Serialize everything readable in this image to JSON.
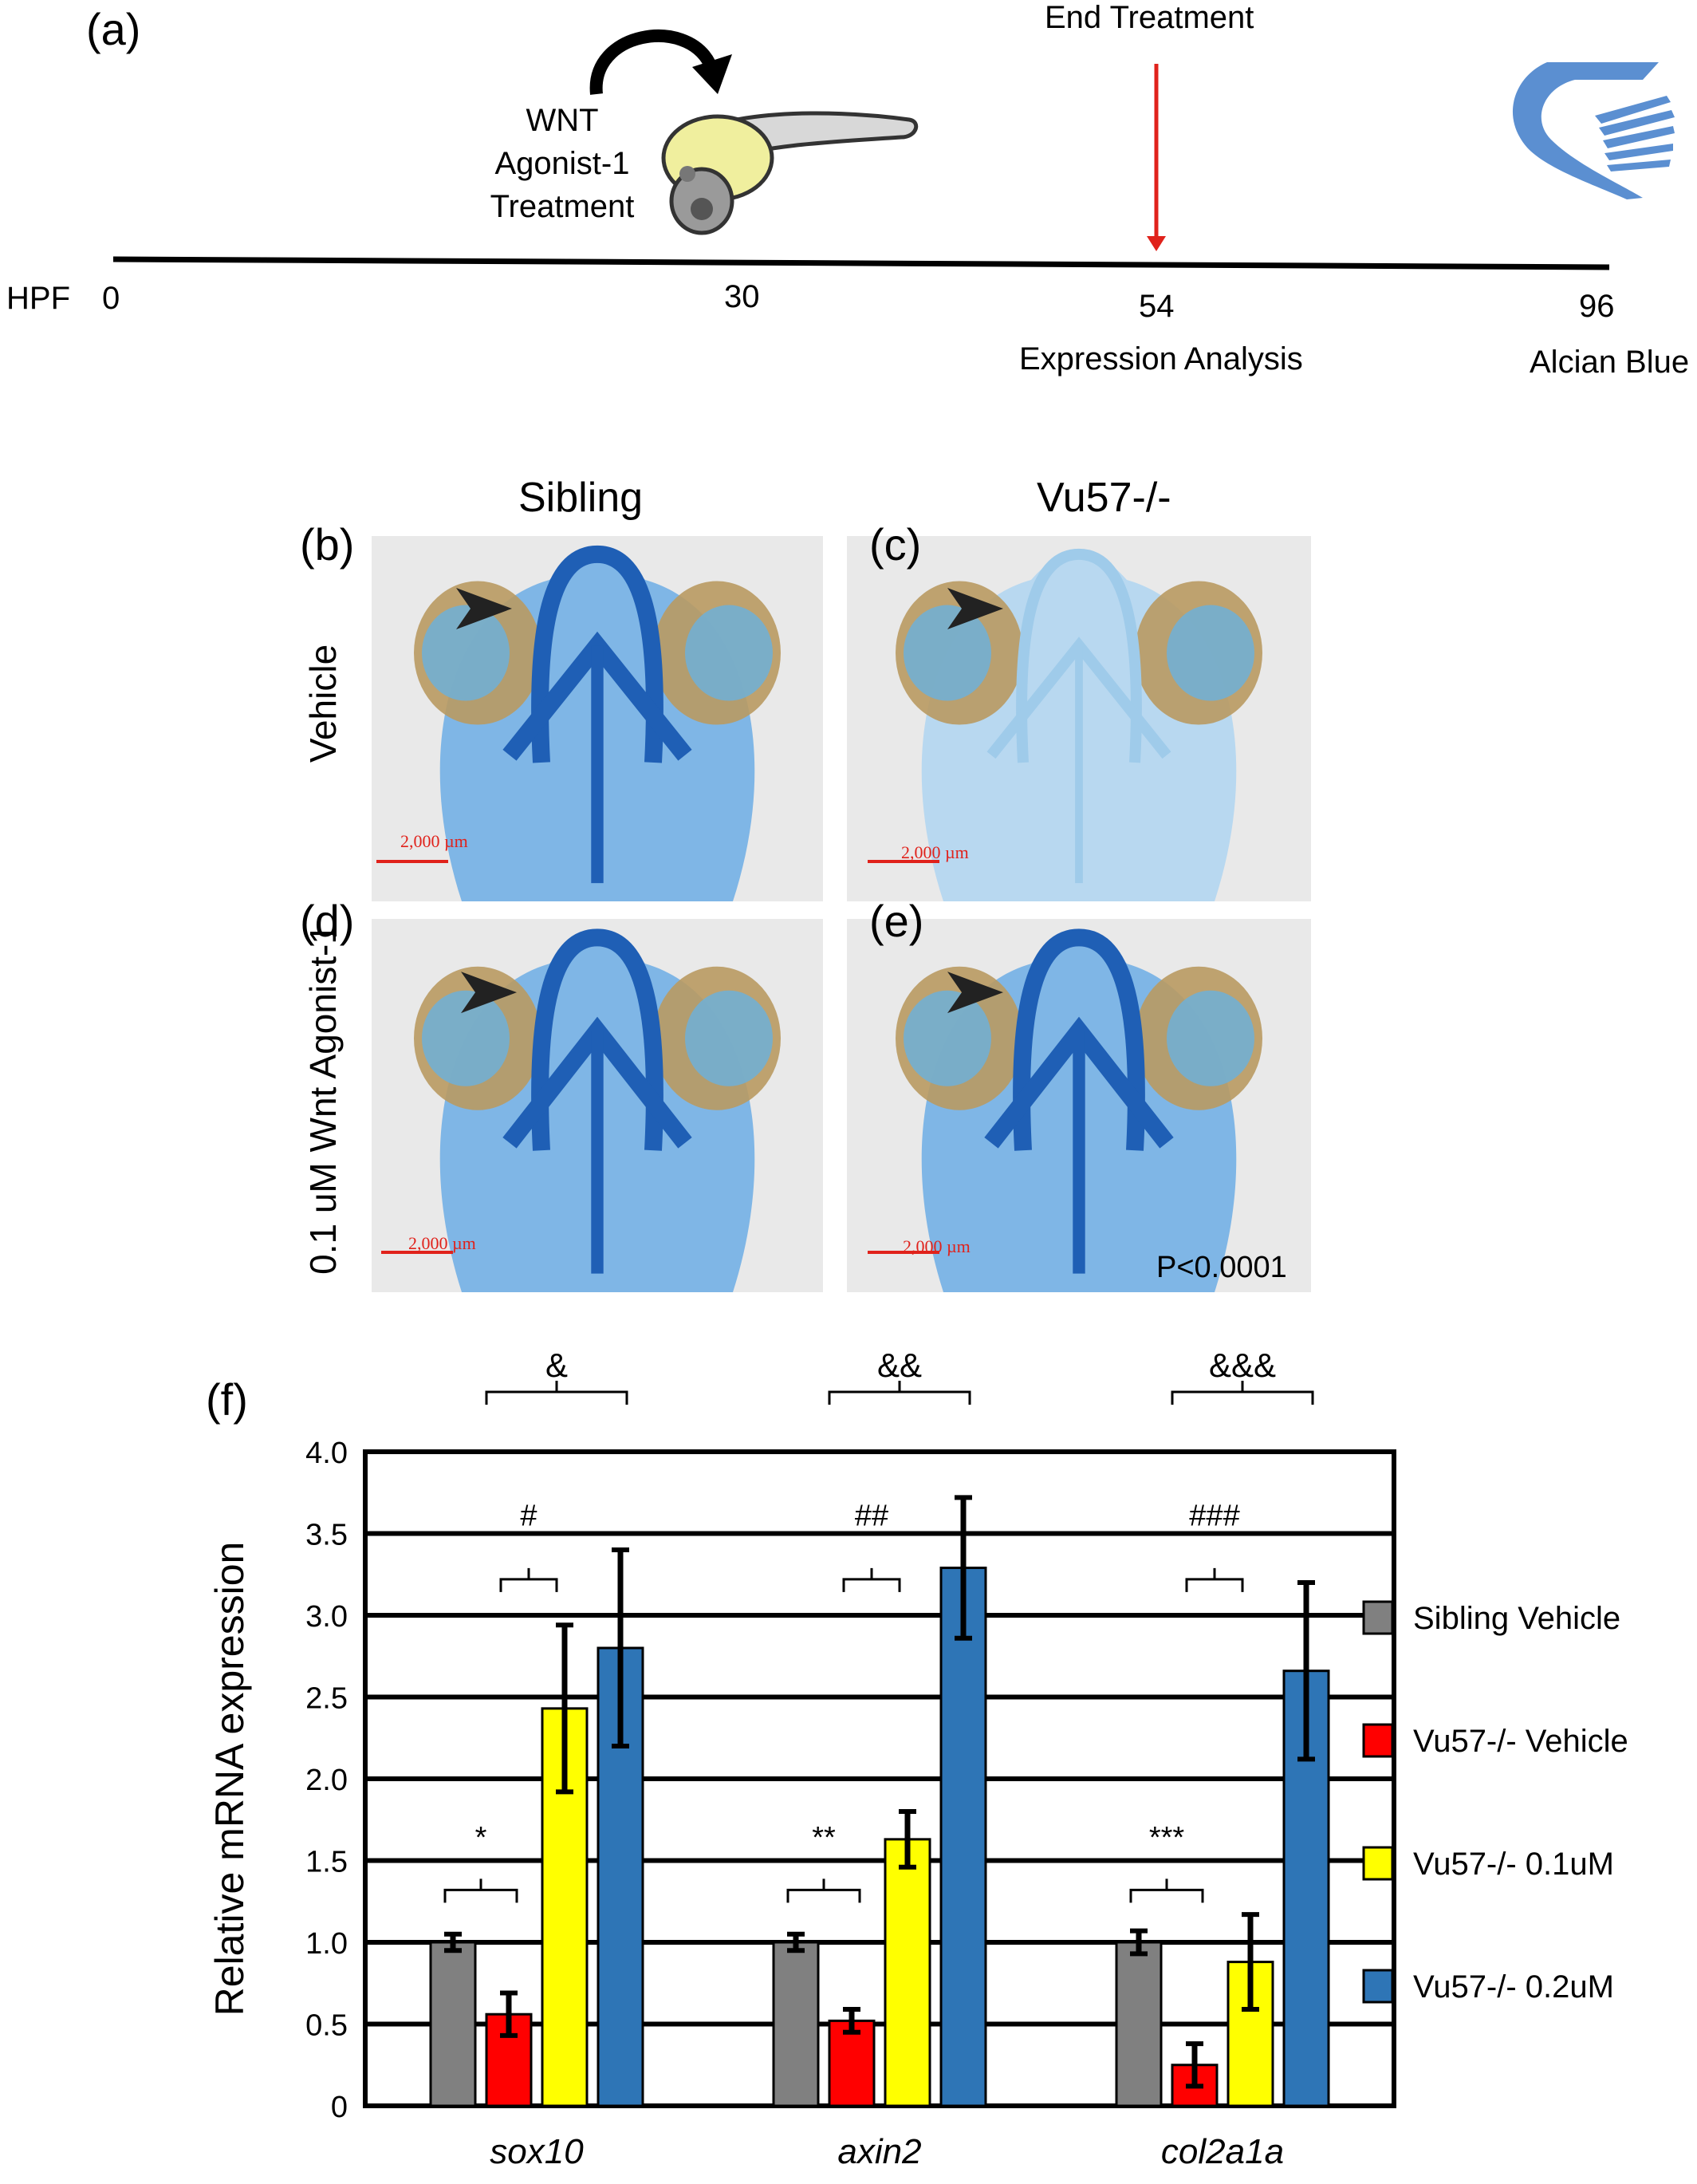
{
  "panel_a": {
    "letter": "(a)",
    "hpf_label": "HPF",
    "ticks": [
      {
        "value": "0",
        "note": ""
      },
      {
        "value": "30",
        "note": ""
      },
      {
        "value": "54",
        "note": "Expression Analysis"
      },
      {
        "value": "96",
        "note": "Alcian Blue"
      }
    ],
    "treatment_lines": [
      "WNT",
      "Agonist-1",
      "Treatment"
    ],
    "end_treatment": "End Treatment",
    "colors": {
      "arrow_red": "#e0221b",
      "cartilage_blue": "#5b8fd1",
      "yolk": "#f0ef9e"
    }
  },
  "panels_bcde": {
    "col_headers": [
      "Sibling",
      "Vu57-/-"
    ],
    "row_headers": [
      "Vehicle",
      "0.1 uM Wnt Agonist-1"
    ],
    "letters": [
      "(b)",
      "(c)",
      "(d)",
      "(e)"
    ],
    "scale_bar": "2,000 µm",
    "pvalue": "P<0.0001",
    "colors": {
      "stain": "#3a8fd8",
      "eye": "#b99a62",
      "scale": "#e0221b"
    }
  },
  "chart_data": {
    "letter": "(f)",
    "type": "bar",
    "ylabel": "Relative mRNA expression",
    "ylim": [
      0,
      4.0
    ],
    "yticks": [
      "0",
      "0.5",
      "1.0",
      "1.5",
      "2.0",
      "2.5",
      "3.0",
      "3.5",
      "4.0"
    ],
    "grid": true,
    "legend_position": "right",
    "categories": [
      "sox10",
      "axin2",
      "col2a1a"
    ],
    "series": [
      {
        "name": "Sibling Vehicle",
        "color": "#808080",
        "values": [
          1.0,
          1.0,
          1.0
        ],
        "errors": [
          0.05,
          0.05,
          0.07
        ]
      },
      {
        "name": "Vu57-/- Vehicle",
        "color": "#ff0000",
        "values": [
          0.56,
          0.52,
          0.25
        ],
        "errors": [
          0.13,
          0.07,
          0.13
        ]
      },
      {
        "name": "Vu57-/- 0.1uM",
        "color": "#ffff00",
        "values": [
          2.43,
          1.63,
          0.88
        ],
        "errors": [
          0.51,
          0.17,
          0.29
        ]
      },
      {
        "name": "Vu57-/- 0.2uM",
        "color": "#2e75b6",
        "values": [
          2.8,
          3.29,
          2.66
        ],
        "errors": [
          0.6,
          0.43,
          0.54
        ]
      }
    ],
    "annotations": {
      "low": [
        "*",
        "**",
        "***"
      ],
      "mid": [
        "#",
        "##",
        "###"
      ],
      "top": [
        "&",
        "&&",
        "&&&"
      ]
    }
  }
}
